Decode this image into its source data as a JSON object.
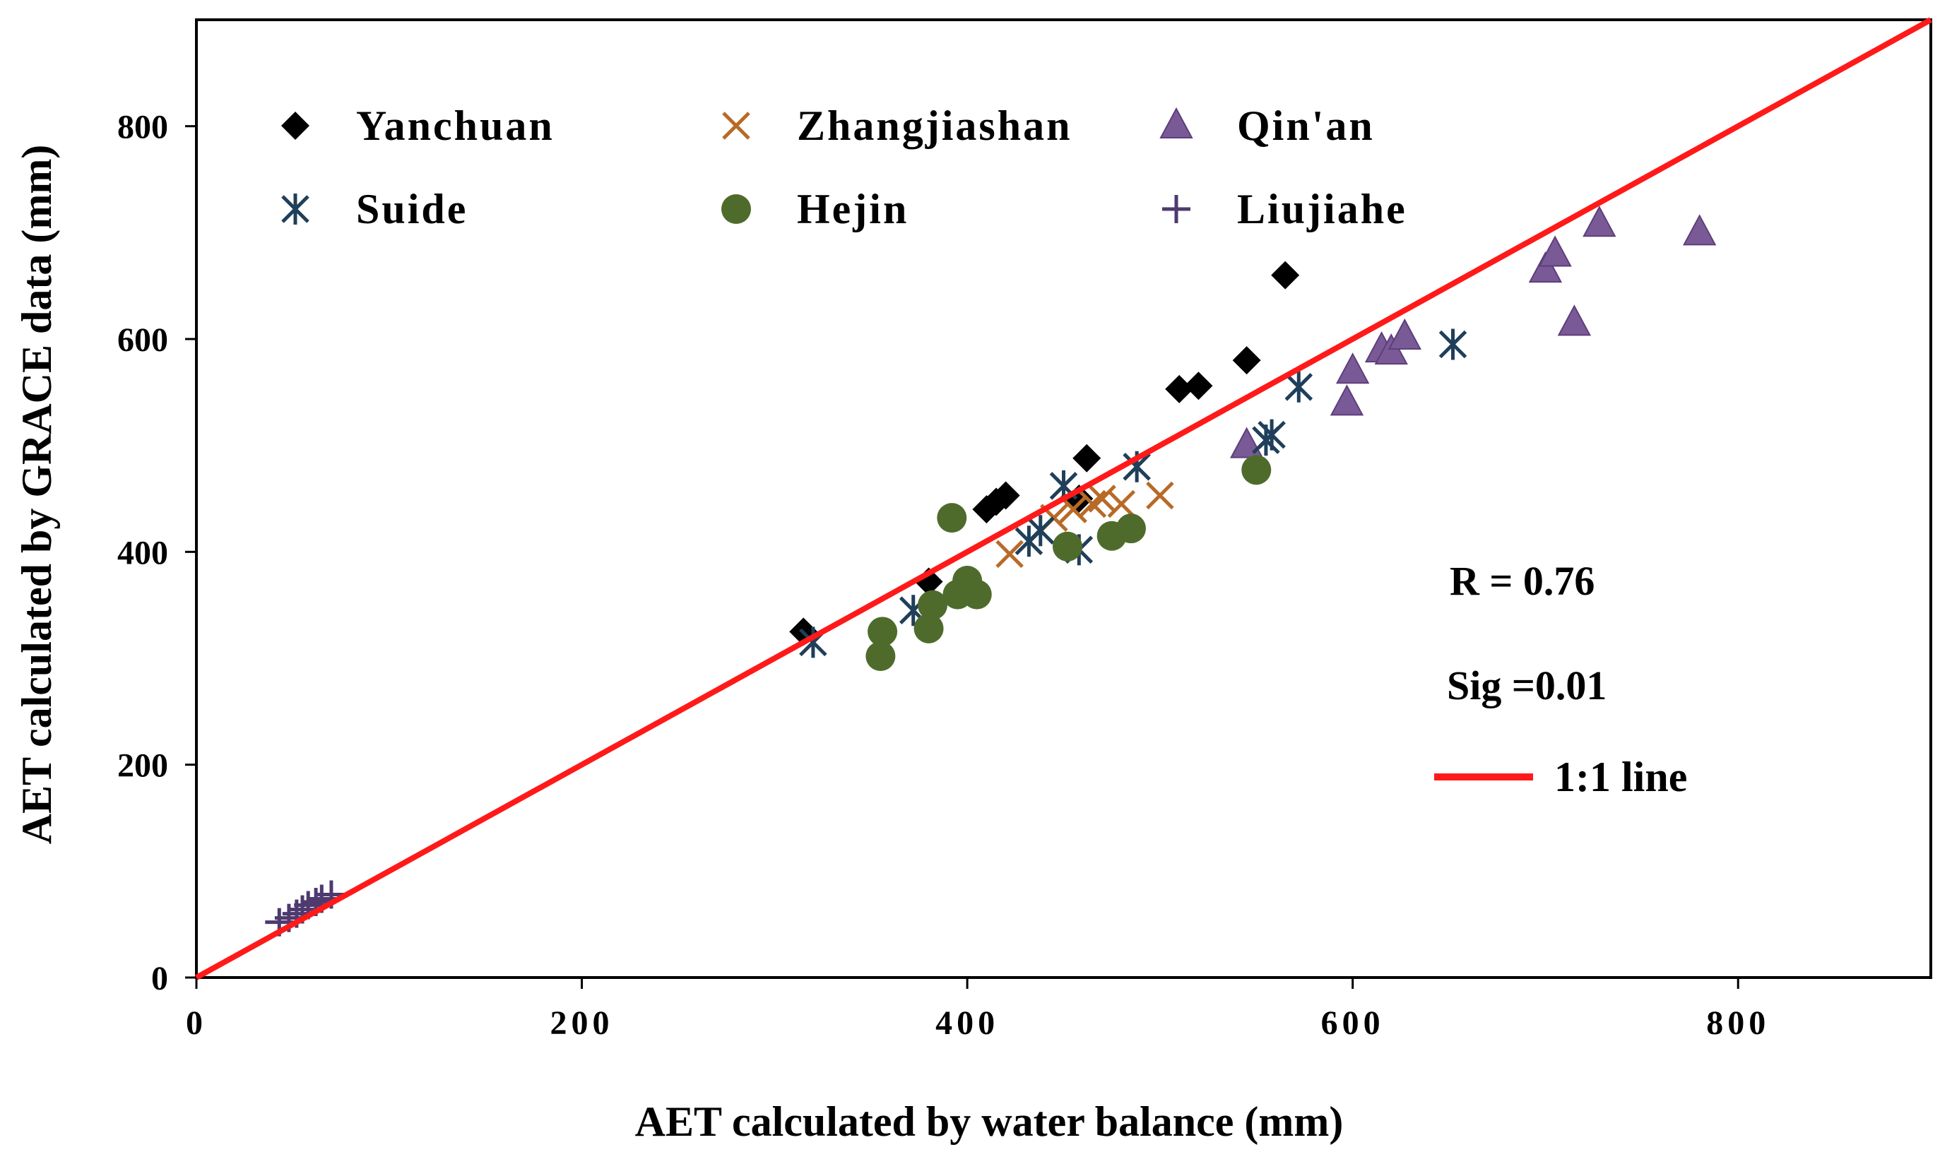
{
  "chart_data": {
    "type": "scatter",
    "title": "",
    "xlabel": "AET calculated by water balance (mm)",
    "ylabel": "AET calculated by GRACE data (mm)",
    "xlim": [
      0,
      900
    ],
    "ylim": [
      0,
      900
    ],
    "xticks": [
      0,
      200,
      400,
      600,
      800
    ],
    "yticks": [
      0,
      200,
      400,
      600,
      800
    ],
    "xtick_labels": [
      "0",
      "200",
      "400",
      "600",
      "800"
    ],
    "ytick_labels": [
      "0",
      "200",
      "400",
      "600",
      "800"
    ],
    "grid": false,
    "legend_position": "top-left",
    "series": [
      {
        "name": "Yanchuan",
        "marker": "diamond",
        "color": "#000000",
        "points": [
          [
            315,
            325
          ],
          [
            380,
            372
          ],
          [
            410,
            440
          ],
          [
            415,
            447
          ],
          [
            420,
            453
          ],
          [
            458,
            450
          ],
          [
            462,
            488
          ],
          [
            510,
            553
          ],
          [
            520,
            556
          ],
          [
            545,
            580
          ],
          [
            565,
            660
          ]
        ]
      },
      {
        "name": "Zhangjiashan",
        "marker": "x",
        "color": "#B86A26",
        "points": [
          [
            422,
            398
          ],
          [
            445,
            432
          ],
          [
            455,
            440
          ],
          [
            465,
            445
          ],
          [
            470,
            450
          ],
          [
            480,
            445
          ],
          [
            500,
            453
          ]
        ]
      },
      {
        "name": "Qin'an",
        "marker": "triangle",
        "color": "#7A5A96",
        "points": [
          [
            545,
            500
          ],
          [
            597,
            540
          ],
          [
            600,
            570
          ],
          [
            615,
            590
          ],
          [
            620,
            588
          ],
          [
            627,
            602
          ],
          [
            700,
            665
          ],
          [
            705,
            680
          ],
          [
            715,
            615
          ],
          [
            728,
            708
          ],
          [
            780,
            700
          ]
        ]
      },
      {
        "name": "Suide",
        "marker": "asterisk",
        "color": "#1F3F5A",
        "points": [
          [
            320,
            315
          ],
          [
            372,
            345
          ],
          [
            432,
            410
          ],
          [
            438,
            420
          ],
          [
            450,
            462
          ],
          [
            458,
            402
          ],
          [
            488,
            480
          ],
          [
            555,
            505
          ],
          [
            558,
            510
          ],
          [
            572,
            555
          ],
          [
            652,
            595
          ]
        ]
      },
      {
        "name": "Hejin",
        "marker": "circle",
        "color": "#4E6B2C",
        "points": [
          [
            355,
            302
          ],
          [
            356,
            325
          ],
          [
            380,
            328
          ],
          [
            382,
            350
          ],
          [
            392,
            432
          ],
          [
            395,
            360
          ],
          [
            400,
            373
          ],
          [
            405,
            360
          ],
          [
            452,
            405
          ],
          [
            475,
            415
          ],
          [
            485,
            422
          ],
          [
            550,
            477
          ]
        ]
      },
      {
        "name": "Liujiahe",
        "marker": "plus",
        "color": "#4E3A6E",
        "points": [
          [
            43,
            52
          ],
          [
            48,
            56
          ],
          [
            52,
            60
          ],
          [
            55,
            64
          ],
          [
            58,
            68
          ],
          [
            62,
            71
          ],
          [
            65,
            74
          ],
          [
            70,
            78
          ]
        ]
      }
    ],
    "reference_line": {
      "name": "1:1 line",
      "color": "#FF1A1A",
      "from": [
        0,
        0
      ],
      "to": [
        900,
        900
      ]
    },
    "annotations": [
      {
        "text": "R = 0.76"
      },
      {
        "text": "Sig =0.01"
      }
    ]
  }
}
